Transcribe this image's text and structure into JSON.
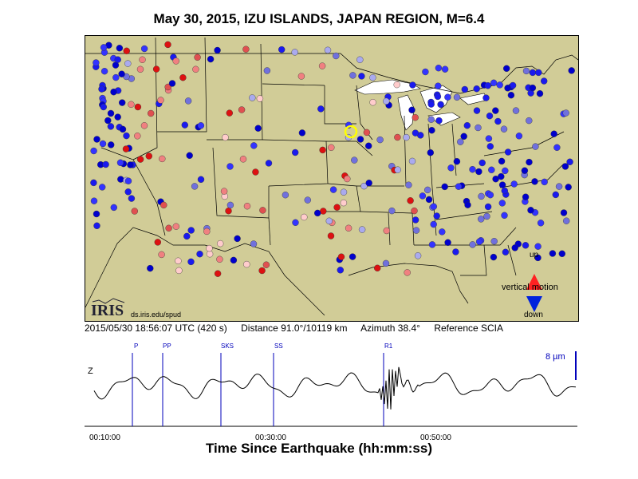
{
  "title": "May 30, 2015, IZU ISLANDS, JAPAN REGION, M=6.4",
  "info": {
    "datetime": "2015/05/30 18:56:07 UTC (420 s)",
    "distance": "Distance  91.0°/10119 km",
    "azimuth": "Azimuth  38.4°",
    "reference": "Reference SCIA"
  },
  "legend": {
    "up": "up",
    "motion": "vertical motion",
    "down": "down",
    "up_color": "#ff2222",
    "down_color": "#0022dd"
  },
  "logo": {
    "text": "IRIS",
    "url": "ds.iris.edu/spud"
  },
  "trace": {
    "component": "Z",
    "scale": "8 µm",
    "phases": [
      "P",
      "PP",
      "SKS",
      "SS",
      "R1"
    ],
    "xlabel": "Time Since Earthquake (hh:mm:ss)",
    "ticks": [
      "00:10:00",
      "00:30:00",
      "00:50:00"
    ]
  },
  "colors": {
    "land": "#d1cc97",
    "water": "#ffffff",
    "reference_station": "#ffff00"
  }
}
